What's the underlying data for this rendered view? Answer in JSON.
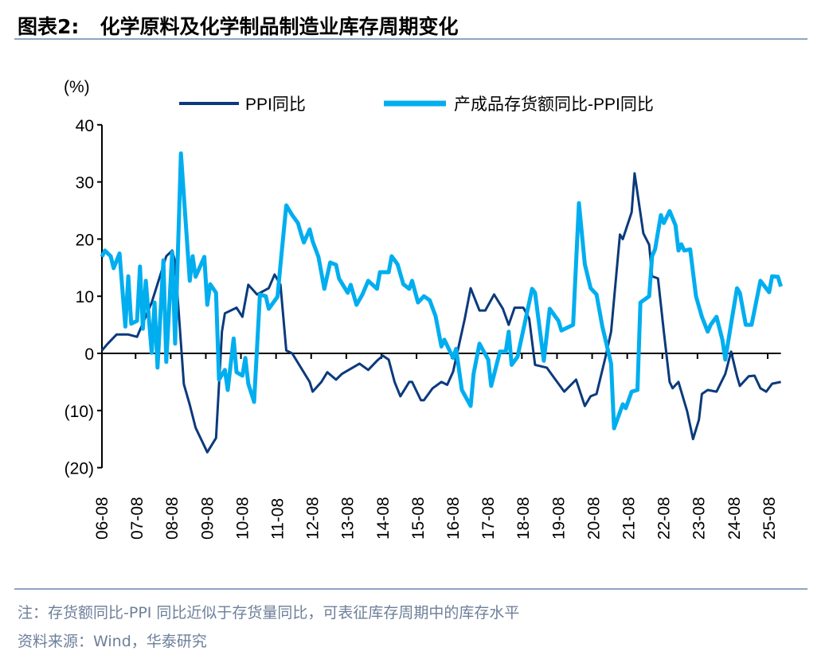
{
  "title": "图表2:   化学原料及化学制品制造业库存周期变化",
  "note": "注：存货额同比-PPI 同比近似于存货量同比，可表征库存周期中的库存水平",
  "source": "资料来源：Wind，华泰研究",
  "chart_data": {
    "type": "line",
    "title": "化学原料及化学制品制造业库存周期变化",
    "ylabel": "(%)",
    "ylim": [
      -20,
      40
    ],
    "yticks": [
      40,
      30,
      20,
      10,
      0,
      -10,
      -20
    ],
    "ytick_labels": [
      "40",
      "30",
      "20",
      "10",
      "0",
      "(10)",
      "(20)"
    ],
    "xlim": [
      "2006-08",
      "2025-12"
    ],
    "xtick_labels": [
      "06-08",
      "07-08",
      "08-08",
      "09-08",
      "10-08",
      "11-08",
      "12-08",
      "13-08",
      "14-08",
      "15-08",
      "16-08",
      "17-08",
      "18-08",
      "19-08",
      "20-08",
      "21-08",
      "22-08",
      "23-08",
      "24-08",
      "25-08"
    ],
    "xticks": [
      "2006-08",
      "2007-08",
      "2008-08",
      "2009-08",
      "2010-08",
      "2011-08",
      "2012-08",
      "2013-08",
      "2014-08",
      "2015-08",
      "2016-08",
      "2017-08",
      "2018-08",
      "2019-08",
      "2020-08",
      "2021-08",
      "2022-08",
      "2023-08",
      "2024-08",
      "2025-08"
    ],
    "grid": false,
    "legend": "top",
    "series": [
      {
        "name": "PPI同比",
        "color": "#0b3a7c",
        "points": [
          [
            "2006-08",
            0.5
          ],
          [
            "2006-10",
            1.7
          ],
          [
            "2007-01",
            3.3
          ],
          [
            "2007-05",
            3.3
          ],
          [
            "2007-08",
            2.9
          ],
          [
            "2008-01",
            8.9
          ],
          [
            "2008-06",
            17
          ],
          [
            "2008-08",
            18
          ],
          [
            "2008-09",
            16
          ],
          [
            "2008-12",
            -5.4
          ],
          [
            "2009-02",
            -9
          ],
          [
            "2009-04",
            -13
          ],
          [
            "2009-08",
            -17.3
          ],
          [
            "2009-11",
            -14.8
          ],
          [
            "2010-01",
            3.8
          ],
          [
            "2010-02",
            7
          ],
          [
            "2010-06",
            8
          ],
          [
            "2010-08",
            6.4
          ],
          [
            "2010-10",
            12
          ],
          [
            "2011-01",
            10.3
          ],
          [
            "2011-05",
            11.4
          ],
          [
            "2011-07",
            13.8
          ],
          [
            "2011-09",
            12
          ],
          [
            "2011-11",
            0.5
          ],
          [
            "2012-01",
            0
          ],
          [
            "2012-07",
            -5
          ],
          [
            "2012-08",
            -6.7
          ],
          [
            "2012-11",
            -5
          ],
          [
            "2013-01",
            -3.3
          ],
          [
            "2013-04",
            -4.6
          ],
          [
            "2013-06",
            -3.6
          ],
          [
            "2013-12",
            -1.8
          ],
          [
            "2014-03",
            -2.9
          ],
          [
            "2014-06",
            -1.3
          ],
          [
            "2014-08",
            -0.4
          ],
          [
            "2014-10",
            -1.1
          ],
          [
            "2014-12",
            -5
          ],
          [
            "2015-02",
            -7.5
          ],
          [
            "2015-05",
            -5
          ],
          [
            "2015-06",
            -5
          ],
          [
            "2015-09",
            -8.2
          ],
          [
            "2015-10",
            -8.2
          ],
          [
            "2016-01",
            -6.1
          ],
          [
            "2016-04",
            -5
          ],
          [
            "2016-06",
            -5.5
          ],
          [
            "2016-08",
            -3.2
          ],
          [
            "2016-12",
            6.1
          ],
          [
            "2017-02",
            11.4
          ],
          [
            "2017-05",
            7.5
          ],
          [
            "2017-07",
            7.5
          ],
          [
            "2017-10",
            10.3
          ],
          [
            "2018-01",
            7.8
          ],
          [
            "2018-03",
            5
          ],
          [
            "2018-05",
            8
          ],
          [
            "2018-08",
            8
          ],
          [
            "2018-10",
            6.1
          ],
          [
            "2018-12",
            -2
          ],
          [
            "2019-04",
            -2.5
          ],
          [
            "2019-06",
            -3.9
          ],
          [
            "2019-10",
            -6.7
          ],
          [
            "2020-02",
            -4.6
          ],
          [
            "2020-05",
            -9.2
          ],
          [
            "2020-07",
            -7.5
          ],
          [
            "2020-09",
            -7.1
          ],
          [
            "2020-12",
            -0.8
          ],
          [
            "2021-02",
            3.8
          ],
          [
            "2021-05",
            20.8
          ],
          [
            "2021-06",
            20
          ],
          [
            "2021-09",
            24.7
          ],
          [
            "2021-10",
            31.5
          ],
          [
            "2022-01",
            21
          ],
          [
            "2022-03",
            19
          ],
          [
            "2022-04",
            13.5
          ],
          [
            "2022-06",
            13.1
          ],
          [
            "2022-08",
            3.8
          ],
          [
            "2022-10",
            -5
          ],
          [
            "2022-11",
            -6.1
          ],
          [
            "2023-01",
            -5
          ],
          [
            "2023-04",
            -10.2
          ],
          [
            "2023-06",
            -15
          ],
          [
            "2023-08",
            -11.6
          ],
          [
            "2023-09",
            -7.1
          ],
          [
            "2023-11",
            -6.4
          ],
          [
            "2024-02",
            -6.7
          ],
          [
            "2024-05",
            -3.6
          ],
          [
            "2024-07",
            0.3
          ],
          [
            "2024-09",
            -4
          ],
          [
            "2024-10",
            -5.7
          ],
          [
            "2025-01",
            -4
          ],
          [
            "2025-03",
            -3.9
          ],
          [
            "2025-05",
            -6.1
          ],
          [
            "2025-07",
            -6.7
          ],
          [
            "2025-09",
            -5.3
          ],
          [
            "2025-12",
            -5
          ]
        ]
      },
      {
        "name": "产成品存货额同比-PPI同比",
        "color": "#00aeef",
        "points": [
          [
            "2006-08",
            16.9
          ],
          [
            "2006-09",
            18
          ],
          [
            "2006-11",
            17
          ],
          [
            "2006-12",
            14.9
          ],
          [
            "2007-02",
            17.5
          ],
          [
            "2007-04",
            4.7
          ],
          [
            "2007-05",
            13.5
          ],
          [
            "2007-06",
            5.2
          ],
          [
            "2007-08",
            5.7
          ],
          [
            "2007-09",
            15.2
          ],
          [
            "2007-10",
            4.3
          ],
          [
            "2007-11",
            12.7
          ],
          [
            "2008-01",
            0.1
          ],
          [
            "2008-02",
            8.9
          ],
          [
            "2008-03",
            -2.5
          ],
          [
            "2008-05",
            16.3
          ],
          [
            "2008-06",
            -1.5
          ],
          [
            "2008-08",
            17.7
          ],
          [
            "2008-09",
            1.7
          ],
          [
            "2008-11",
            35
          ],
          [
            "2009-02",
            12.7
          ],
          [
            "2009-03",
            17
          ],
          [
            "2009-04",
            13.4
          ],
          [
            "2009-07",
            16.9
          ],
          [
            "2009-08",
            8.5
          ],
          [
            "2009-09",
            12.1
          ],
          [
            "2009-11",
            10.6
          ],
          [
            "2009-12",
            -4.6
          ],
          [
            "2010-02",
            -2.9
          ],
          [
            "2010-03",
            -6.4
          ],
          [
            "2010-05",
            2.6
          ],
          [
            "2010-06",
            -3.3
          ],
          [
            "2010-08",
            -3.9
          ],
          [
            "2010-09",
            -0.8
          ],
          [
            "2010-10",
            -5.3
          ],
          [
            "2010-12",
            -8.5
          ],
          [
            "2011-02",
            10.3
          ],
          [
            "2011-04",
            10
          ],
          [
            "2011-05",
            7.8
          ],
          [
            "2011-08",
            9.9
          ],
          [
            "2011-09",
            15.5
          ],
          [
            "2011-11",
            25.9
          ],
          [
            "2012-01",
            24.2
          ],
          [
            "2012-03",
            22.8
          ],
          [
            "2012-04",
            21
          ],
          [
            "2012-05",
            19.4
          ],
          [
            "2012-07",
            21.7
          ],
          [
            "2012-08",
            19.6
          ],
          [
            "2012-10",
            16.9
          ],
          [
            "2012-12",
            11.3
          ],
          [
            "2013-02",
            15.9
          ],
          [
            "2013-04",
            15.5
          ],
          [
            "2013-05",
            13.1
          ],
          [
            "2013-08",
            10.6
          ],
          [
            "2013-09",
            12
          ],
          [
            "2013-11",
            8.5
          ],
          [
            "2014-01",
            10.3
          ],
          [
            "2014-03",
            12.7
          ],
          [
            "2014-06",
            11.3
          ],
          [
            "2014-07",
            14.2
          ],
          [
            "2014-10",
            14.2
          ],
          [
            "2014-11",
            17
          ],
          [
            "2015-01",
            15.6
          ],
          [
            "2015-03",
            12.1
          ],
          [
            "2015-05",
            11.3
          ],
          [
            "2015-06",
            12.7
          ],
          [
            "2015-08",
            8.9
          ],
          [
            "2015-10",
            10
          ],
          [
            "2015-12",
            9.3
          ],
          [
            "2016-02",
            6.5
          ],
          [
            "2016-04",
            1.2
          ],
          [
            "2016-05",
            2.4
          ],
          [
            "2016-08",
            -0.8
          ],
          [
            "2016-09",
            0.8
          ],
          [
            "2016-11",
            -6.4
          ],
          [
            "2017-02",
            -9.2
          ],
          [
            "2017-03",
            -3.6
          ],
          [
            "2017-05",
            1.7
          ],
          [
            "2017-08",
            -1.1
          ],
          [
            "2017-09",
            -5.7
          ],
          [
            "2017-12",
            0.3
          ],
          [
            "2018-02",
            0.3
          ],
          [
            "2018-03",
            3.8
          ],
          [
            "2018-04",
            -2
          ],
          [
            "2018-06",
            -0.6
          ],
          [
            "2018-11",
            11.3
          ],
          [
            "2018-12",
            10.6
          ],
          [
            "2019-03",
            -1.3
          ],
          [
            "2019-05",
            7.8
          ],
          [
            "2019-08",
            5.7
          ],
          [
            "2019-09",
            4
          ],
          [
            "2020-01",
            5
          ],
          [
            "2020-03",
            26.3
          ],
          [
            "2020-05",
            15.6
          ],
          [
            "2020-07",
            11.4
          ],
          [
            "2020-09",
            10.3
          ],
          [
            "2020-11",
            4.7
          ],
          [
            "2021-02",
            -1.8
          ],
          [
            "2021-03",
            -13.1
          ],
          [
            "2021-06",
            -8.9
          ],
          [
            "2021-07",
            -9.6
          ],
          [
            "2021-09",
            -6.7
          ],
          [
            "2021-11",
            -6.4
          ],
          [
            "2021-12",
            8.9
          ],
          [
            "2022-03",
            10
          ],
          [
            "2022-04",
            17
          ],
          [
            "2022-05",
            18.2
          ],
          [
            "2022-07",
            24.2
          ],
          [
            "2022-08",
            22.8
          ],
          [
            "2022-10",
            24.9
          ],
          [
            "2022-12",
            22.4
          ],
          [
            "2023-01",
            18
          ],
          [
            "2023-02",
            19.1
          ],
          [
            "2023-03",
            18
          ],
          [
            "2023-05",
            18.2
          ],
          [
            "2023-07",
            10
          ],
          [
            "2023-09",
            6.4
          ],
          [
            "2023-11",
            3.8
          ],
          [
            "2023-12",
            5
          ],
          [
            "2024-02",
            6.4
          ],
          [
            "2024-04",
            2.4
          ],
          [
            "2024-05",
            -1.1
          ],
          [
            "2024-07",
            5.2
          ],
          [
            "2024-09",
            11.4
          ],
          [
            "2024-10",
            10.6
          ],
          [
            "2024-12",
            5
          ],
          [
            "2025-02",
            5
          ],
          [
            "2025-05",
            12.7
          ],
          [
            "2025-08",
            10.7
          ],
          [
            "2025-09",
            13.5
          ],
          [
            "2025-11",
            13.4
          ],
          [
            "2025-12",
            11.7
          ]
        ]
      }
    ]
  }
}
